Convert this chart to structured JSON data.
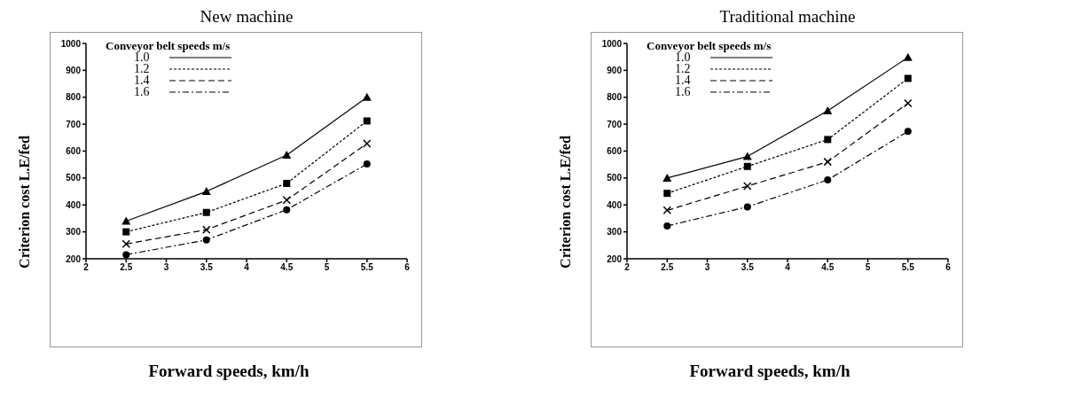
{
  "chart_data": [
    {
      "type": "line",
      "title": "New machine",
      "xlabel": "Forward speeds, km/h",
      "ylabel": "Criterion cost L.E/fed",
      "legend_title": "Conveyor belt speeds m/s",
      "legend": "top left",
      "grid": false,
      "x": [
        2.5,
        3.5,
        4.5,
        5.5
      ],
      "xlim": [
        2,
        6
      ],
      "xticks": [
        2,
        2.5,
        3,
        3.5,
        4,
        4.5,
        5,
        5.5,
        6
      ],
      "ylim": [
        200,
        1000
      ],
      "yticks": [
        200,
        300,
        400,
        500,
        600,
        700,
        800,
        900,
        1000
      ],
      "series": [
        {
          "name": "1.0",
          "color": "#000000",
          "marker": "triangle",
          "line_style": "solid",
          "values": [
            340,
            450,
            585,
            800
          ]
        },
        {
          "name": "1.2",
          "color": "#000000",
          "marker": "square",
          "line_style": "dotted",
          "values": [
            300,
            372,
            480,
            712
          ]
        },
        {
          "name": "1.4",
          "color": "#000000",
          "marker": "cross",
          "line_style": "dashed",
          "values": [
            255,
            308,
            418,
            628
          ]
        },
        {
          "name": "1.6",
          "color": "#000000",
          "marker": "circle",
          "line_style": "dashdot",
          "values": [
            215,
            270,
            382,
            552
          ]
        }
      ]
    },
    {
      "type": "line",
      "title": "Traditional machine",
      "xlabel": "Forward speeds, km/h",
      "ylabel": "Criterion cost L.E/fed",
      "legend_title": "Conveyor belt speeds m/s",
      "legend": "top left",
      "grid": false,
      "x": [
        2.5,
        3.5,
        4.5,
        5.5
      ],
      "xlim": [
        2,
        6
      ],
      "xticks": [
        2,
        2.5,
        3,
        3.5,
        4,
        4.5,
        5,
        5.5,
        6
      ],
      "ylim": [
        200,
        1000
      ],
      "yticks": [
        200,
        300,
        400,
        500,
        600,
        700,
        800,
        900,
        1000
      ],
      "series": [
        {
          "name": "1.0",
          "color": "#000000",
          "marker": "triangle",
          "line_style": "solid",
          "values": [
            500,
            580,
            750,
            948
          ]
        },
        {
          "name": "1.2",
          "color": "#000000",
          "marker": "square",
          "line_style": "dotted",
          "values": [
            443,
            543,
            643,
            870
          ]
        },
        {
          "name": "1.4",
          "color": "#000000",
          "marker": "cross",
          "line_style": "dashed",
          "values": [
            380,
            470,
            560,
            778
          ]
        },
        {
          "name": "1.6",
          "color": "#000000",
          "marker": "circle",
          "line_style": "dashdot",
          "values": [
            322,
            393,
            493,
            673
          ]
        }
      ]
    }
  ]
}
